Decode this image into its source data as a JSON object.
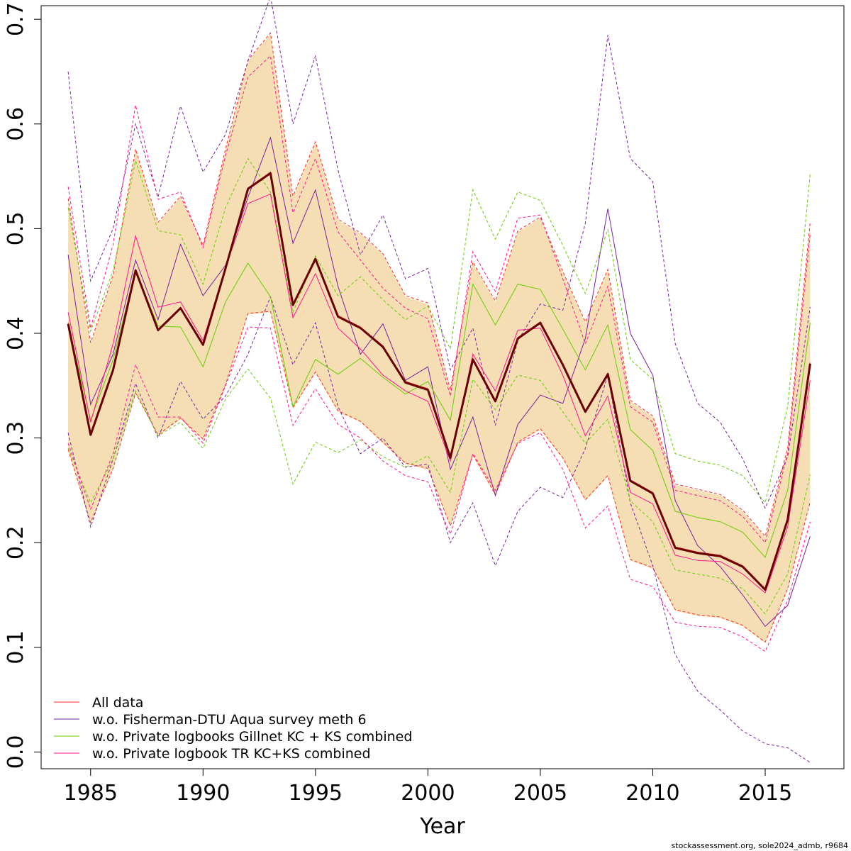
{
  "chart_data": {
    "type": "line",
    "xlabel": "Year",
    "ylabel": "",
    "xlim": [
      1982.8,
      2018.5
    ],
    "ylim": [
      -0.016,
      0.713
    ],
    "x_ticks": [
      1985,
      1990,
      1995,
      2000,
      2005,
      2010,
      2015
    ],
    "y_ticks": [
      0.0,
      0.1,
      0.2,
      0.3,
      0.4,
      0.5,
      0.6,
      0.7
    ],
    "x_tick_labels": [
      "1985",
      "1990",
      "1995",
      "2000",
      "2005",
      "2010",
      "2015"
    ],
    "y_tick_labels": [
      "0.0",
      "0.1",
      "0.2",
      "0.3",
      "0.4",
      "0.5",
      "0.6",
      "0.7"
    ],
    "grid": false,
    "legend_position": "bottom-left",
    "footnote": "stockassessment.org, sole2024_admb, r9684",
    "x": [
      1984,
      1985,
      1986,
      1987,
      1988,
      1989,
      1990,
      1991,
      1992,
      1993,
      1994,
      1995,
      1996,
      1997,
      1998,
      1999,
      2000,
      2001,
      2002,
      2003,
      2004,
      2005,
      2006,
      2007,
      2008,
      2009,
      2010,
      2011,
      2012,
      2013,
      2014,
      2015,
      2016,
      2017
    ],
    "band": {
      "color": "#f5deb3",
      "lower": [
        0.288,
        0.218,
        0.27,
        0.342,
        0.302,
        0.318,
        0.298,
        0.35,
        0.418,
        0.42,
        0.328,
        0.362,
        0.325,
        0.315,
        0.295,
        0.275,
        0.27,
        0.215,
        0.283,
        0.245,
        0.295,
        0.308,
        0.28,
        0.24,
        0.263,
        0.183,
        0.175,
        0.135,
        0.13,
        0.128,
        0.12,
        0.104,
        0.155,
        0.238
      ],
      "upper": [
        0.528,
        0.39,
        0.455,
        0.575,
        0.505,
        0.53,
        0.483,
        0.575,
        0.66,
        0.686,
        0.53,
        0.582,
        0.508,
        0.495,
        0.475,
        0.435,
        0.428,
        0.345,
        0.467,
        0.43,
        0.497,
        0.51,
        0.458,
        0.41,
        0.46,
        0.335,
        0.32,
        0.255,
        0.25,
        0.245,
        0.23,
        0.205,
        0.29,
        0.505
      ]
    },
    "main_series": {
      "color": "#6b0000",
      "values": [
        0.409,
        0.303,
        0.365,
        0.46,
        0.403,
        0.424,
        0.389,
        0.462,
        0.538,
        0.553,
        0.427,
        0.471,
        0.416,
        0.405,
        0.387,
        0.353,
        0.346,
        0.281,
        0.375,
        0.335,
        0.395,
        0.41,
        0.37,
        0.325,
        0.361,
        0.259,
        0.247,
        0.195,
        0.19,
        0.187,
        0.177,
        0.155,
        0.222,
        0.371
      ]
    },
    "series": [
      {
        "name": "All data",
        "color": "#ff2a2a",
        "values": [
          0.41,
          0.304,
          0.365,
          0.461,
          0.404,
          0.425,
          0.39,
          0.463,
          0.539,
          0.554,
          0.428,
          0.472,
          0.417,
          0.406,
          0.388,
          0.354,
          0.347,
          0.282,
          0.376,
          0.336,
          0.396,
          0.411,
          0.371,
          0.326,
          0.362,
          0.26,
          0.248,
          0.196,
          0.191,
          0.188,
          0.178,
          0.156,
          0.223,
          0.372
        ],
        "lower": [
          0.289,
          0.219,
          0.271,
          0.343,
          0.303,
          0.319,
          0.299,
          0.351,
          0.419,
          0.421,
          0.329,
          0.363,
          0.326,
          0.316,
          0.296,
          0.276,
          0.271,
          0.216,
          0.284,
          0.246,
          0.296,
          0.309,
          0.281,
          0.241,
          0.264,
          0.184,
          0.176,
          0.136,
          0.131,
          0.129,
          0.121,
          0.105,
          0.156,
          0.239
        ],
        "upper": [
          0.529,
          0.391,
          0.456,
          0.576,
          0.506,
          0.531,
          0.484,
          0.576,
          0.661,
          0.687,
          0.531,
          0.583,
          0.509,
          0.496,
          0.476,
          0.436,
          0.429,
          0.346,
          0.468,
          0.431,
          0.498,
          0.511,
          0.459,
          0.411,
          0.461,
          0.336,
          0.321,
          0.256,
          0.251,
          0.246,
          0.231,
          0.206,
          0.291,
          0.506
        ]
      },
      {
        "name": "w.o. Fisherman-DTU Aqua survey meth 6",
        "color": "#7b1fa2",
        "values": [
          0.475,
          0.332,
          0.38,
          0.47,
          0.413,
          0.485,
          0.436,
          0.465,
          0.53,
          0.587,
          0.486,
          0.537,
          0.445,
          0.38,
          0.409,
          0.355,
          0.368,
          0.27,
          0.32,
          0.245,
          0.313,
          0.341,
          0.333,
          0.395,
          0.519,
          0.4,
          0.36,
          0.24,
          0.197,
          0.177,
          0.15,
          0.12,
          0.14,
          0.206
        ],
        "lower": [
          0.305,
          0.215,
          0.28,
          0.352,
          0.3,
          0.354,
          0.318,
          0.34,
          0.38,
          0.435,
          0.37,
          0.41,
          0.33,
          0.285,
          0.3,
          0.272,
          0.275,
          0.2,
          0.238,
          0.178,
          0.23,
          0.253,
          0.243,
          0.29,
          0.36,
          0.238,
          0.178,
          0.093,
          0.058,
          0.04,
          0.02,
          0.008,
          0.004,
          -0.01
        ],
        "upper": [
          0.65,
          0.45,
          0.5,
          0.6,
          0.53,
          0.617,
          0.554,
          0.59,
          0.66,
          0.722,
          0.6,
          0.665,
          0.556,
          0.475,
          0.513,
          0.452,
          0.462,
          0.365,
          0.405,
          0.312,
          0.393,
          0.428,
          0.422,
          0.505,
          0.685,
          0.567,
          0.545,
          0.39,
          0.333,
          0.315,
          0.28,
          0.233,
          0.282,
          0.425
        ]
      },
      {
        "name": "w.o. Private logbooks Gillnet KC + KS combined",
        "color": "#66cc00",
        "values": [
          0.409,
          0.317,
          0.375,
          0.46,
          0.407,
          0.406,
          0.368,
          0.43,
          0.467,
          0.435,
          0.33,
          0.375,
          0.361,
          0.376,
          0.358,
          0.342,
          0.354,
          0.317,
          0.447,
          0.408,
          0.447,
          0.442,
          0.404,
          0.365,
          0.408,
          0.308,
          0.288,
          0.23,
          0.224,
          0.22,
          0.21,
          0.186,
          0.25,
          0.41
        ],
        "lower": [
          0.29,
          0.238,
          0.28,
          0.345,
          0.302,
          0.315,
          0.29,
          0.337,
          0.366,
          0.338,
          0.256,
          0.296,
          0.286,
          0.298,
          0.282,
          0.272,
          0.283,
          0.248,
          0.356,
          0.327,
          0.36,
          0.355,
          0.325,
          0.295,
          0.318,
          0.24,
          0.22,
          0.174,
          0.17,
          0.166,
          0.156,
          0.132,
          0.17,
          0.265
        ],
        "upper": [
          0.52,
          0.402,
          0.46,
          0.565,
          0.498,
          0.494,
          0.447,
          0.52,
          0.567,
          0.535,
          0.42,
          0.474,
          0.436,
          0.454,
          0.432,
          0.413,
          0.426,
          0.385,
          0.537,
          0.49,
          0.535,
          0.527,
          0.484,
          0.438,
          0.499,
          0.375,
          0.356,
          0.285,
          0.278,
          0.274,
          0.264,
          0.238,
          0.33,
          0.552
        ]
      },
      {
        "name": "w.o. Private logbook TR KC+KS combined",
        "color": "#ff1493",
        "values": [
          0.42,
          0.315,
          0.39,
          0.493,
          0.425,
          0.43,
          0.393,
          0.463,
          0.524,
          0.533,
          0.415,
          0.457,
          0.405,
          0.385,
          0.36,
          0.345,
          0.335,
          0.278,
          0.38,
          0.345,
          0.403,
          0.405,
          0.36,
          0.302,
          0.34,
          0.248,
          0.237,
          0.188,
          0.183,
          0.182,
          0.17,
          0.152,
          0.215,
          0.355
        ],
        "lower": [
          0.295,
          0.232,
          0.285,
          0.37,
          0.32,
          0.32,
          0.295,
          0.35,
          0.406,
          0.405,
          0.312,
          0.347,
          0.313,
          0.3,
          0.278,
          0.264,
          0.258,
          0.208,
          0.285,
          0.25,
          0.295,
          0.305,
          0.27,
          0.214,
          0.235,
          0.165,
          0.158,
          0.124,
          0.12,
          0.119,
          0.11,
          0.096,
          0.145,
          0.22
        ],
        "upper": [
          0.54,
          0.405,
          0.485,
          0.618,
          0.528,
          0.535,
          0.482,
          0.57,
          0.645,
          0.665,
          0.515,
          0.567,
          0.497,
          0.47,
          0.443,
          0.424,
          0.414,
          0.34,
          0.478,
          0.44,
          0.51,
          0.513,
          0.452,
          0.39,
          0.445,
          0.33,
          0.315,
          0.25,
          0.245,
          0.24,
          0.225,
          0.2,
          0.285,
          0.495
        ]
      }
    ]
  }
}
